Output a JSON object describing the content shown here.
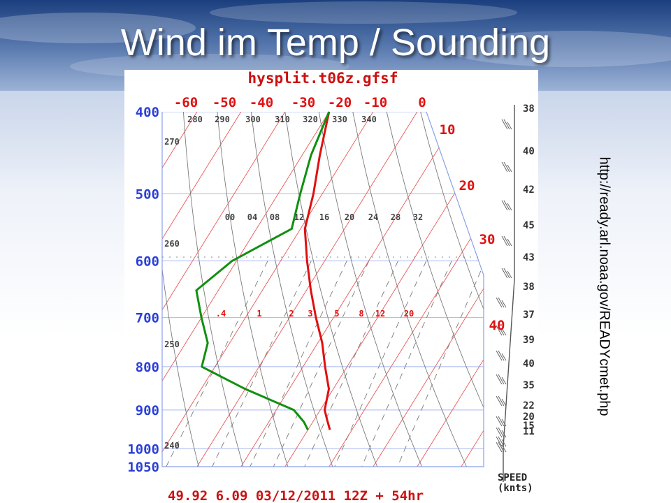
{
  "slide": {
    "title": "Wind im Temp / Sounding",
    "side_url": "http://ready.arl.noaa.gov/READYcmet.php"
  },
  "colors": {
    "temperature": "#e01010",
    "dewpoint": "#109010",
    "isotherm": "#e85858",
    "dry_adiabat": "#7a7a7a",
    "mixing_ratio": "#7a7a7a",
    "pressure_label": "#2a3fd8",
    "isobar": "#a8b6f0",
    "footer": "#cc1010",
    "header": "#cc1010"
  },
  "chart_data": {
    "type": "skew-T sounding",
    "title": "hysplit.t06z.gfsf",
    "footer": "49.92      6.09    03/12/2011  12Z  + 54hr",
    "pressure_levels": [
      "400",
      "500",
      "600",
      "700",
      "800",
      "900",
      "1000",
      "1050"
    ],
    "isotherm_labels_top": [
      "-60",
      "-50",
      "-40",
      "-30",
      "-20",
      "-10",
      "0"
    ],
    "isotherm_labels_right": [
      "10",
      "20",
      "30",
      "40"
    ],
    "potential_temperature_labels_top": [
      "280",
      "290",
      "300",
      "310",
      "320",
      "330",
      "340"
    ],
    "potential_temperature_labels_left": [
      "270",
      "260",
      "250",
      "240"
    ],
    "mixing_ratio_labels_upper": [
      "00",
      "04",
      "08",
      "12",
      "16",
      "20",
      "24",
      "28",
      "32"
    ],
    "mixing_ratio_labels_lower": [
      ".4",
      "1",
      "2",
      "3",
      "5",
      "8",
      "12",
      "20"
    ],
    "temperature_profile": [
      {
        "p": 400,
        "t": -40
      },
      {
        "p": 450,
        "t": -36
      },
      {
        "p": 500,
        "t": -32
      },
      {
        "p": 550,
        "t": -29
      },
      {
        "p": 600,
        "t": -24
      },
      {
        "p": 650,
        "t": -19
      },
      {
        "p": 700,
        "t": -14
      },
      {
        "p": 750,
        "t": -9
      },
      {
        "p": 800,
        "t": -5
      },
      {
        "p": 850,
        "t": -1
      },
      {
        "p": 900,
        "t": 1
      },
      {
        "p": 925,
        "t": 3
      },
      {
        "p": 950,
        "t": 5
      }
    ],
    "dewpoint_profile": [
      {
        "p": 400,
        "t": -40
      },
      {
        "p": 450,
        "t": -38
      },
      {
        "p": 500,
        "t": -35
      },
      {
        "p": 550,
        "t": -32
      },
      {
        "p": 600,
        "t": -41
      },
      {
        "p": 650,
        "t": -45
      },
      {
        "p": 700,
        "t": -40
      },
      {
        "p": 750,
        "t": -35
      },
      {
        "p": 800,
        "t": -33
      },
      {
        "p": 850,
        "t": -20
      },
      {
        "p": 900,
        "t": -6
      },
      {
        "p": 930,
        "t": -2
      },
      {
        "p": 950,
        "t": 0
      }
    ],
    "wind_speed_label": "SPEED",
    "wind_speed_unit": "(knts)",
    "wind_speeds": [
      "38",
      "40",
      "42",
      "45",
      "43",
      "38",
      "37",
      "39",
      "40",
      "35",
      "22",
      "20",
      "15",
      "11"
    ],
    "pressure_range": [
      400,
      1050
    ],
    "temperature_axis_range_at_bottom": [
      -50,
      50
    ]
  }
}
